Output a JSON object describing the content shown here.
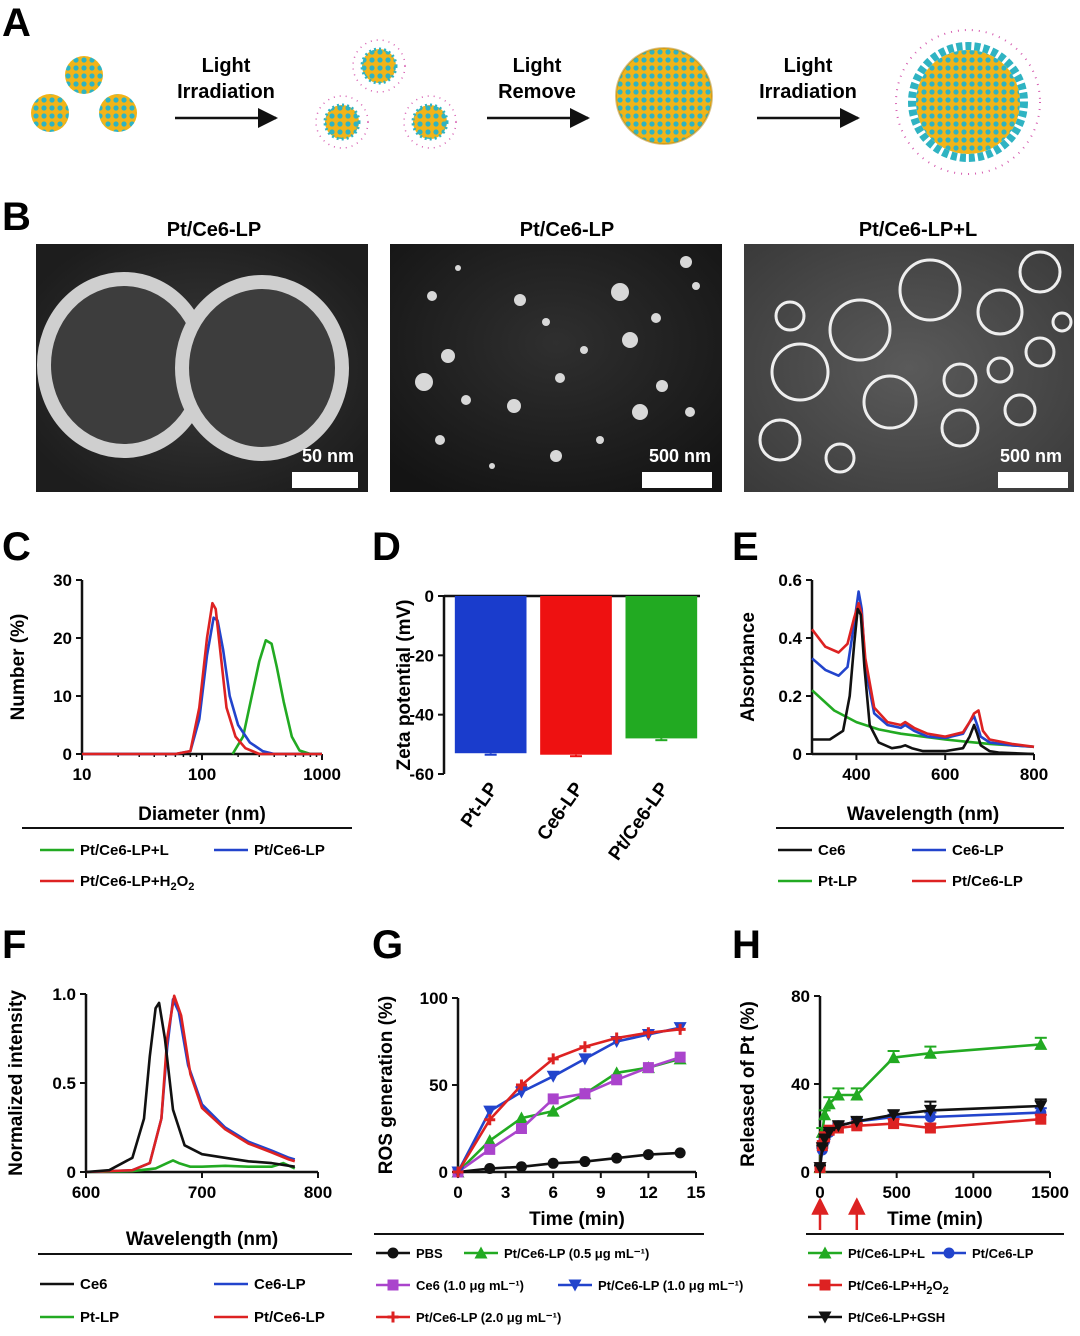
{
  "panel_labels": [
    "A",
    "B",
    "C",
    "D",
    "E",
    "F",
    "G",
    "H"
  ],
  "schematic": {
    "steps": [
      {
        "line1": "Light",
        "line2": "Irradiation"
      },
      {
        "line1": "Light",
        "line2": "Remove"
      },
      {
        "line1": "Light",
        "line2": "Irradiation"
      }
    ],
    "colors": {
      "yellow": "#f2b418",
      "cyan": "#2fb3c2",
      "pink": "#d65cb0"
    }
  },
  "micrographs": [
    {
      "title": "Pt/Ce6-LP",
      "scale": "50 nm"
    },
    {
      "title": "Pt/Ce6-LP",
      "scale": "500 nm"
    },
    {
      "title": "Pt/Ce6-LP+L",
      "scale": "500 nm"
    }
  ],
  "chart_data": [
    {
      "id": "C",
      "type": "line",
      "xscale": "log",
      "xlabel": "Diameter (nm)",
      "ylabel": "Number (%)",
      "xlim": [
        10,
        1000
      ],
      "ylim": [
        0,
        30
      ],
      "xticks": [
        "10",
        "100",
        "1000"
      ],
      "yticks": [
        "0",
        "10",
        "20",
        "30"
      ],
      "series": [
        {
          "name": "Pt/Ce6-LP+L",
          "color": "#22aa22",
          "x": [
            180,
            220,
            260,
            300,
            340,
            380,
            420,
            480,
            560,
            650,
            800,
            1000
          ],
          "y": [
            0,
            3,
            10,
            16,
            19.6,
            19,
            15,
            9,
            3,
            0.6,
            0,
            0
          ]
        },
        {
          "name": "Pt/Ce6-LP",
          "color": "#2244cc",
          "x": [
            10,
            60,
            80,
            95,
            110,
            125,
            135,
            150,
            170,
            200,
            250,
            320,
            400,
            1000
          ],
          "y": [
            0,
            0,
            0.5,
            6,
            17,
            23.5,
            23,
            18,
            10,
            5,
            2,
            0.5,
            0,
            0
          ]
        },
        {
          "name": "Pt/Ce6-LP+H2O2",
          "color": "#dd2222",
          "x": [
            10,
            60,
            80,
            95,
            110,
            122,
            130,
            145,
            160,
            190,
            230,
            300,
            1000
          ],
          "y": [
            0,
            0,
            0.5,
            8,
            20,
            26,
            25,
            16,
            8,
            3,
            1,
            0,
            0
          ]
        }
      ],
      "legend": [
        {
          "label": "Pt/Ce6-LP+L",
          "color": "#22aa22"
        },
        {
          "label": "Pt/Ce6-LP",
          "color": "#2244cc"
        },
        {
          "label_main": "Pt/Ce6-LP+H",
          "sub1": "2",
          "mid": "O",
          "sub2": "2",
          "color": "#dd2222"
        }
      ]
    },
    {
      "id": "D",
      "type": "bar",
      "xlabel": "",
      "ylabel": "Zeta potential (mV)",
      "ylim": [
        -60,
        0
      ],
      "yticks": [
        "0",
        "-20",
        "-40",
        "-60"
      ],
      "categories": [
        "Pt-LP",
        "Ce6-LP",
        "Pt/Ce6-LP"
      ],
      "values": [
        -53,
        -53.5,
        -48
      ],
      "errors": [
        0.5,
        0.5,
        0.6
      ],
      "colors": [
        "#1a3ccc",
        "#ee1111",
        "#22aa22"
      ]
    },
    {
      "id": "E",
      "type": "line",
      "xlabel": "Wavelength (nm)",
      "ylabel": "Absorbance",
      "xlim": [
        300,
        800
      ],
      "ylim": [
        0,
        0.6
      ],
      "xticks": [
        "400",
        "600",
        "800"
      ],
      "yticks": [
        "0",
        "0.2",
        "0.4",
        "0.6"
      ],
      "series": [
        {
          "name": "Pt-LP",
          "color": "#22aa22",
          "x": [
            300,
            350,
            400,
            450,
            500,
            550,
            600,
            650,
            700,
            750,
            800
          ],
          "y": [
            0.22,
            0.15,
            0.11,
            0.085,
            0.07,
            0.06,
            0.05,
            0.042,
            0.035,
            0.03,
            0.025
          ]
        },
        {
          "name": "Ce6-LP",
          "color": "#2244cc",
          "x": [
            300,
            330,
            360,
            380,
            395,
            405,
            412,
            420,
            440,
            470,
            500,
            510,
            530,
            560,
            600,
            640,
            655,
            665,
            672,
            680,
            700,
            750,
            800
          ],
          "y": [
            0.33,
            0.29,
            0.27,
            0.3,
            0.45,
            0.56,
            0.5,
            0.3,
            0.14,
            0.1,
            0.09,
            0.1,
            0.08,
            0.06,
            0.055,
            0.07,
            0.11,
            0.13,
            0.1,
            0.06,
            0.04,
            0.03,
            0.025
          ]
        },
        {
          "name": "Pt/Ce6-LP",
          "color": "#dd2222",
          "x": [
            300,
            330,
            360,
            380,
            395,
            405,
            412,
            420,
            440,
            470,
            500,
            510,
            530,
            560,
            600,
            640,
            655,
            665,
            675,
            685,
            700,
            750,
            800
          ],
          "y": [
            0.43,
            0.37,
            0.35,
            0.38,
            0.47,
            0.52,
            0.48,
            0.33,
            0.16,
            0.11,
            0.1,
            0.11,
            0.09,
            0.07,
            0.06,
            0.075,
            0.11,
            0.14,
            0.15,
            0.08,
            0.05,
            0.035,
            0.025
          ]
        },
        {
          "name": "Ce6",
          "color": "#111111",
          "x": [
            300,
            340,
            370,
            385,
            395,
            403,
            410,
            418,
            430,
            450,
            480,
            500,
            510,
            525,
            550,
            600,
            640,
            655,
            665,
            672,
            680,
            700,
            720,
            800
          ],
          "y": [
            0.05,
            0.05,
            0.08,
            0.2,
            0.38,
            0.5,
            0.48,
            0.3,
            0.1,
            0.04,
            0.02,
            0.025,
            0.03,
            0.02,
            0.01,
            0.01,
            0.02,
            0.06,
            0.1,
            0.07,
            0.03,
            0.01,
            0.005,
            0.0
          ]
        }
      ],
      "legend": [
        {
          "label": "Ce6",
          "color": "#111111"
        },
        {
          "label": "Ce6-LP",
          "color": "#2244cc"
        },
        {
          "label": "Pt-LP",
          "color": "#22aa22"
        },
        {
          "label": "Pt/Ce6-LP",
          "color": "#dd2222"
        }
      ]
    },
    {
      "id": "F",
      "type": "line",
      "xlabel": "Wavelength (nm)",
      "ylabel": "Normalized intensity",
      "xlim": [
        600,
        800
      ],
      "ylim": [
        0,
        1.0
      ],
      "xticks": [
        "600",
        "700",
        "800"
      ],
      "yticks": [
        "0",
        "0.5",
        "1.0"
      ],
      "series": [
        {
          "name": "Pt-LP",
          "color": "#22aa22",
          "x": [
            600,
            640,
            660,
            670,
            675,
            680,
            690,
            700,
            720,
            740,
            760,
            770,
            780
          ],
          "y": [
            0,
            0.005,
            0.02,
            0.05,
            0.065,
            0.05,
            0.03,
            0.03,
            0.035,
            0.03,
            0.03,
            0.05,
            0.02
          ]
        },
        {
          "name": "Ce6-LP",
          "color": "#2244cc",
          "x": [
            600,
            640,
            655,
            665,
            670,
            675,
            680,
            688,
            700,
            720,
            740,
            760,
            775,
            780
          ],
          "y": [
            0,
            0.01,
            0.05,
            0.3,
            0.7,
            0.97,
            0.9,
            0.6,
            0.38,
            0.25,
            0.17,
            0.12,
            0.08,
            0.07
          ]
        },
        {
          "name": "Pt/Ce6-LP",
          "color": "#dd2222",
          "x": [
            600,
            640,
            655,
            665,
            670,
            676,
            682,
            690,
            700,
            720,
            740,
            760,
            775,
            780
          ],
          "y": [
            0,
            0.01,
            0.05,
            0.3,
            0.75,
            0.99,
            0.88,
            0.55,
            0.36,
            0.24,
            0.16,
            0.11,
            0.07,
            0.06
          ]
        },
        {
          "name": "Ce6",
          "color": "#111111",
          "x": [
            600,
            620,
            640,
            650,
            655,
            660,
            663,
            668,
            675,
            685,
            700,
            720,
            740,
            760,
            780
          ],
          "y": [
            0,
            0.01,
            0.08,
            0.3,
            0.65,
            0.92,
            0.95,
            0.75,
            0.35,
            0.15,
            0.1,
            0.08,
            0.06,
            0.05,
            0.03
          ]
        }
      ],
      "legend": [
        {
          "label": "Ce6",
          "color": "#111111"
        },
        {
          "label": "Ce6-LP",
          "color": "#2244cc"
        },
        {
          "label": "Pt-LP",
          "color": "#22aa22"
        },
        {
          "label": "Pt/Ce6-LP",
          "color": "#dd2222"
        }
      ]
    },
    {
      "id": "G",
      "type": "line",
      "xlabel": "Time (min)",
      "ylabel": "ROS generation (%)",
      "xlim": [
        0,
        15
      ],
      "ylim": [
        0,
        100
      ],
      "xticks": [
        "0",
        "3",
        "6",
        "9",
        "12",
        "15"
      ],
      "yticks": [
        "0",
        "50",
        "100"
      ],
      "series": [
        {
          "name": "PBS",
          "color": "#111111",
          "marker": "circle",
          "x": [
            0,
            2,
            4,
            6,
            8,
            10,
            12,
            14
          ],
          "y": [
            0,
            2,
            3,
            5,
            6,
            8,
            10,
            11
          ]
        },
        {
          "name": "Pt/Ce6-LP (0.5 μg mL⁻¹)",
          "color": "#22aa22",
          "marker": "triangle",
          "x": [
            0,
            2,
            4,
            6,
            8,
            10,
            12,
            14
          ],
          "y": [
            0,
            18,
            31,
            35,
            45,
            57,
            60,
            65
          ]
        },
        {
          "name": "Ce6 (1.0 μg mL⁻¹)",
          "color": "#aa44cc",
          "marker": "square",
          "x": [
            0,
            2,
            4,
            6,
            8,
            10,
            12,
            14
          ],
          "y": [
            0,
            13,
            25,
            42,
            45,
            53,
            60,
            66
          ]
        },
        {
          "name": "Pt/Ce6-LP (1.0 μg mL⁻¹)",
          "color": "#2244cc",
          "marker": "triangle-down",
          "x": [
            0,
            2,
            4,
            6,
            8,
            10,
            12,
            14
          ],
          "y": [
            0,
            35,
            46,
            55,
            65,
            75,
            79,
            83
          ]
        },
        {
          "name": "Pt/Ce6-LP (2.0 μg mL⁻¹)",
          "color": "#dd2222",
          "marker": "plus",
          "x": [
            0,
            2,
            4,
            6,
            8,
            10,
            12,
            14
          ],
          "y": [
            0,
            30,
            50,
            65,
            72,
            77,
            80,
            82
          ]
        }
      ],
      "legend": [
        {
          "label": "PBS",
          "color": "#111111",
          "marker": "circle"
        },
        {
          "label": "Pt/Ce6-LP (0.5 μg mL⁻¹)",
          "color": "#22aa22",
          "marker": "triangle"
        },
        {
          "label": "Ce6 (1.0 μg mL⁻¹)",
          "color": "#aa44cc",
          "marker": "square"
        },
        {
          "label": "Pt/Ce6-LP (1.0 μg mL⁻¹)",
          "color": "#2244cc",
          "marker": "triangle-down"
        },
        {
          "label": "Pt/Ce6-LP (2.0 μg mL⁻¹)",
          "color": "#dd2222",
          "marker": "plus"
        }
      ]
    },
    {
      "id": "H",
      "type": "line",
      "xlabel": "Time (min)",
      "ylabel": "Released of Pt (%)",
      "xlim": [
        0,
        1500
      ],
      "ylim": [
        0,
        80
      ],
      "xticks": [
        "0",
        "500",
        "1000",
        "1500"
      ],
      "yticks": [
        "0",
        "40",
        "80"
      ],
      "arrows_at_x": [
        0,
        240
      ],
      "series": [
        {
          "name": "Pt/Ce6-LP+L",
          "color": "#22aa22",
          "marker": "triangle",
          "x": [
            0,
            15,
            30,
            60,
            120,
            240,
            480,
            720,
            1440
          ],
          "y": [
            2,
            18,
            26,
            31,
            35,
            35,
            52,
            54,
            58
          ],
          "err": [
            1,
            2,
            2,
            3,
            3,
            3,
            3,
            3,
            3
          ]
        },
        {
          "name": "Pt/Ce6-LP",
          "color": "#2244cc",
          "marker": "circle",
          "x": [
            0,
            15,
            30,
            60,
            120,
            240,
            480,
            720,
            1440
          ],
          "y": [
            2,
            10,
            14,
            18,
            21,
            23,
            25,
            25,
            27
          ],
          "err": [
            1,
            1,
            1,
            1,
            1,
            1,
            1,
            2,
            2
          ]
        },
        {
          "name": "Pt/Ce6-LP+H2O2",
          "color": "#dd2222",
          "marker": "square",
          "x": [
            0,
            15,
            30,
            60,
            120,
            240,
            480,
            720,
            1440
          ],
          "y": [
            2,
            12,
            16,
            19,
            20,
            21,
            22,
            20,
            24
          ],
          "err": [
            1,
            1,
            1,
            1,
            1,
            1,
            2,
            2,
            2
          ]
        },
        {
          "name": "Pt/Ce6-LP+GSH",
          "color": "#111111",
          "marker": "triangle-down",
          "x": [
            0,
            15,
            30,
            60,
            120,
            240,
            480,
            720,
            1440
          ],
          "y": [
            2,
            11,
            15,
            18,
            21,
            23,
            26,
            28,
            30
          ],
          "err": [
            1,
            1,
            1,
            1,
            2,
            2,
            2,
            4,
            3
          ]
        }
      ],
      "legend": [
        {
          "label": "Pt/Ce6-LP+L",
          "color": "#22aa22",
          "marker": "triangle"
        },
        {
          "label": "Pt/Ce6-LP",
          "color": "#2244cc",
          "marker": "circle"
        },
        {
          "label_main": "Pt/Ce6-LP+H",
          "sub1": "2",
          "mid": "O",
          "sub2": "2",
          "color": "#dd2222",
          "marker": "square"
        },
        {
          "label": "Pt/Ce6-LP+GSH",
          "color": "#111111",
          "marker": "triangle-down"
        }
      ]
    }
  ]
}
